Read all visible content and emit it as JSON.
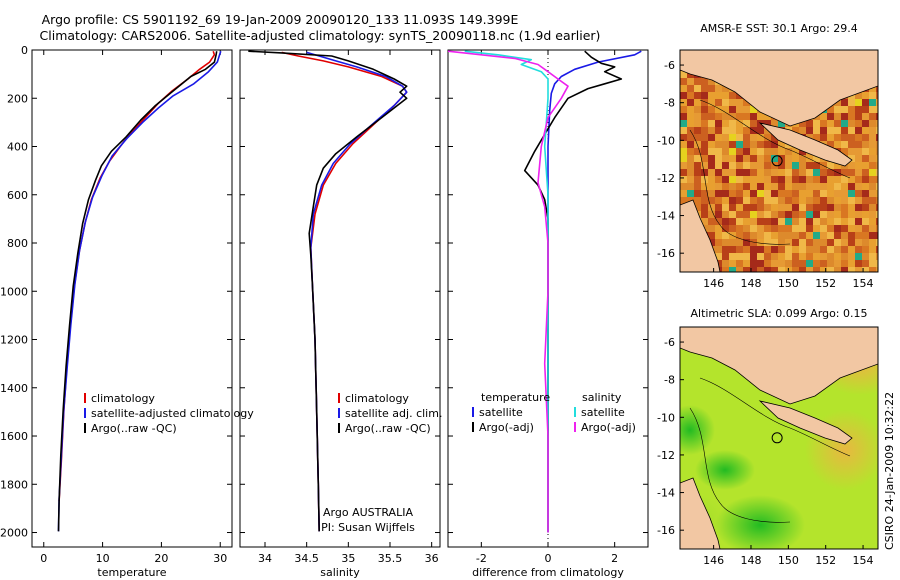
{
  "titles": {
    "line1": "Argo profile: CS 5901192_69 19-Jan-2009 20090120_133 11.093S 149.399E",
    "line2": "Climatology: CARS2006. Satellite-adjusted climatology: synTS_20090118.nc (1.9d earlier)"
  },
  "side_label": "CSIRO 24-Jan-2009 10:32:22",
  "colors": {
    "climatology": "#e00000",
    "satellite": "#1a1ae6",
    "argo": "#000000",
    "diff_satellite": "#22dddd",
    "diff_argo": "#ee22ee"
  },
  "chart_data": [
    {
      "type": "line",
      "name_panel": "temperature",
      "xlabel": "temperature",
      "ylabel": "",
      "xlim": [
        -2,
        32
      ],
      "ylim": [
        2060,
        0
      ],
      "x_ticks": [
        0,
        10,
        20,
        30
      ],
      "y_ticks": [
        0,
        200,
        400,
        600,
        800,
        1000,
        1200,
        1400,
        1600,
        1800,
        2000
      ],
      "legend": [
        "climatology",
        "satellite-adjusted climatology",
        "Argo(..raw -QC)"
      ],
      "series": [
        {
          "name": "climatology",
          "color_key": "climatology",
          "points": [
            [
              28.8,
              5
            ],
            [
              29.0,
              20
            ],
            [
              28.2,
              50
            ],
            [
              26.5,
              80
            ],
            [
              24.5,
              120
            ],
            [
              21.8,
              170
            ],
            [
              19.5,
              220
            ],
            [
              16.5,
              300
            ],
            [
              13.6,
              380
            ],
            [
              11.2,
              460
            ],
            [
              9.6,
              530
            ],
            [
              8.1,
              620
            ],
            [
              7.0,
              720
            ],
            [
              6.0,
              840
            ],
            [
              5.2,
              980
            ],
            [
              4.5,
              1150
            ],
            [
              3.9,
              1320
            ],
            [
              3.4,
              1500
            ],
            [
              3.0,
              1700
            ],
            [
              2.6,
              1870
            ]
          ]
        },
        {
          "name": "satellite-adjusted climatology",
          "color_key": "satellite",
          "points": [
            [
              30.1,
              5
            ],
            [
              29.9,
              20
            ],
            [
              29.5,
              50
            ],
            [
              28.0,
              90
            ],
            [
              25.5,
              140
            ],
            [
              22.0,
              190
            ],
            [
              19.5,
              240
            ],
            [
              16.8,
              300
            ],
            [
              14.0,
              370
            ],
            [
              11.6,
              440
            ],
            [
              9.9,
              520
            ],
            [
              8.3,
              610
            ],
            [
              7.1,
              710
            ],
            [
              6.1,
              830
            ],
            [
              5.3,
              970
            ],
            [
              4.6,
              1140
            ],
            [
              4.0,
              1310
            ],
            [
              3.4,
              1490
            ],
            [
              3.0,
              1680
            ],
            [
              2.6,
              1860
            ],
            [
              2.5,
              1995
            ]
          ]
        },
        {
          "name": "Argo(..raw -QC)",
          "color_key": "argo",
          "points": [
            [
              29.4,
              5
            ],
            [
              29.3,
              20
            ],
            [
              29.0,
              50
            ],
            [
              27.5,
              80
            ],
            [
              25.0,
              110
            ],
            [
              23.5,
              140
            ],
            [
              21.5,
              180
            ],
            [
              19.0,
              230
            ],
            [
              16.5,
              290
            ],
            [
              14.0,
              360
            ],
            [
              11.5,
              420
            ],
            [
              9.8,
              480
            ],
            [
              8.8,
              540
            ],
            [
              7.6,
              620
            ],
            [
              6.6,
              720
            ],
            [
              5.8,
              840
            ],
            [
              5.0,
              980
            ],
            [
              4.4,
              1140
            ],
            [
              3.8,
              1310
            ],
            [
              3.3,
              1490
            ],
            [
              2.9,
              1680
            ],
            [
              2.6,
              1870
            ],
            [
              2.5,
              1995
            ]
          ]
        }
      ]
    },
    {
      "type": "line",
      "name_panel": "salinity",
      "xlabel": "salinity",
      "xlim": [
        33.7,
        36.1
      ],
      "ylim": [
        2060,
        0
      ],
      "x_ticks": [
        34,
        34.5,
        35,
        35.5,
        36
      ],
      "legend": [
        "climatology",
        "satellite adj. clim.",
        "Argo(..raw -QC)"
      ],
      "annotation": [
        "Argo AUSTRALIA",
        "PI: Susan Wijffels"
      ],
      "series": [
        {
          "name": "climatology",
          "color_key": "climatology",
          "points": [
            [
              34.2,
              10
            ],
            [
              34.4,
              25
            ],
            [
              34.7,
              45
            ],
            [
              35.0,
              70
            ],
            [
              35.4,
              110
            ],
            [
              35.65,
              150
            ],
            [
              35.7,
              175
            ],
            [
              35.55,
              230
            ],
            [
              35.3,
              310
            ],
            [
              35.05,
              390
            ],
            [
              34.85,
              470
            ],
            [
              34.7,
              560
            ],
            [
              34.6,
              680
            ],
            [
              34.55,
              820
            ],
            [
              34.57,
              980
            ],
            [
              34.6,
              1200
            ],
            [
              34.62,
              1500
            ],
            [
              34.64,
              1800
            ],
            [
              34.65,
              1995
            ]
          ]
        },
        {
          "name": "satellite adj. clim.",
          "color_key": "satellite",
          "points": [
            [
              34.5,
              10
            ],
            [
              34.65,
              25
            ],
            [
              34.85,
              45
            ],
            [
              35.1,
              70
            ],
            [
              35.45,
              110
            ],
            [
              35.65,
              150
            ],
            [
              35.7,
              175
            ],
            [
              35.55,
              230
            ],
            [
              35.28,
              310
            ],
            [
              35.02,
              390
            ],
            [
              34.82,
              470
            ],
            [
              34.68,
              560
            ],
            [
              34.58,
              680
            ],
            [
              34.55,
              820
            ],
            [
              34.57,
              980
            ],
            [
              34.6,
              1200
            ],
            [
              34.62,
              1500
            ],
            [
              34.64,
              1800
            ],
            [
              34.65,
              1995
            ]
          ]
        },
        {
          "name": "Argo(..raw -QC)",
          "color_key": "argo",
          "points": [
            [
              33.8,
              5
            ],
            [
              34.2,
              12
            ],
            [
              34.8,
              25
            ],
            [
              35.0,
              45
            ],
            [
              35.3,
              80
            ],
            [
              35.55,
              120
            ],
            [
              35.7,
              150
            ],
            [
              35.62,
              175
            ],
            [
              35.7,
              200
            ],
            [
              35.4,
              280
            ],
            [
              35.1,
              360
            ],
            [
              34.85,
              430
            ],
            [
              34.7,
              490
            ],
            [
              34.62,
              560
            ],
            [
              34.58,
              650
            ],
            [
              34.53,
              760
            ],
            [
              34.55,
              850
            ],
            [
              34.57,
              980
            ],
            [
              34.6,
              1200
            ],
            [
              34.62,
              1500
            ],
            [
              34.64,
              1800
            ],
            [
              34.65,
              1995
            ]
          ]
        }
      ]
    },
    {
      "type": "line",
      "name_panel": "difference",
      "xlabel": "difference from climatology",
      "xlim": [
        -3,
        3
      ],
      "ylim": [
        2060,
        0
      ],
      "x_ticks": [
        -2,
        0,
        2
      ],
      "legend_left": {
        "title": "temperature",
        "items": [
          "satellite",
          "Argo(-adj)"
        ]
      },
      "legend_right": {
        "title": "salinity",
        "items": [
          "satellite",
          "Argo(-adj)"
        ]
      },
      "series": [
        {
          "name": "temperature satellite",
          "color_key": "satellite",
          "points": [
            [
              2.8,
              5
            ],
            [
              2.6,
              20
            ],
            [
              1.5,
              50
            ],
            [
              0.8,
              80
            ],
            [
              0.4,
              110
            ],
            [
              0.2,
              140
            ],
            [
              0.1,
              180
            ],
            [
              0.05,
              250
            ],
            [
              0.0,
              400
            ],
            [
              0.0,
              1000
            ],
            [
              0.0,
              2000
            ]
          ]
        },
        {
          "name": "temperature Argo(-adj)",
          "color_key": "argo",
          "points": [
            [
              1.1,
              5
            ],
            [
              1.3,
              30
            ],
            [
              1.6,
              55
            ],
            [
              2.0,
              70
            ],
            [
              1.7,
              90
            ],
            [
              2.2,
              120
            ],
            [
              1.7,
              140
            ],
            [
              1.2,
              160
            ],
            [
              0.6,
              200
            ],
            [
              0.2,
              280
            ],
            [
              -0.1,
              350
            ],
            [
              -0.4,
              420
            ],
            [
              -0.7,
              500
            ],
            [
              -0.3,
              560
            ],
            [
              -0.1,
              620
            ],
            [
              0.0,
              700
            ],
            [
              0.0,
              1000
            ],
            [
              0.0,
              2000
            ]
          ]
        },
        {
          "name": "salinity satellite",
          "color_key": "diff_satellite",
          "points": [
            [
              -2.5,
              5
            ],
            [
              -1.5,
              20
            ],
            [
              -0.5,
              40
            ],
            [
              -0.8,
              60
            ],
            [
              -0.2,
              90
            ],
            [
              0.0,
              120
            ],
            [
              0.0,
              200
            ],
            [
              -0.1,
              400
            ],
            [
              0.0,
              600
            ],
            [
              0.0,
              1000
            ],
            [
              0.0,
              2000
            ]
          ]
        },
        {
          "name": "salinity Argo(-adj)",
          "color_key": "diff_argo",
          "points": [
            [
              -3.0,
              5
            ],
            [
              -2.0,
              20
            ],
            [
              -1.0,
              35
            ],
            [
              -0.3,
              60
            ],
            [
              0.0,
              90
            ],
            [
              0.3,
              120
            ],
            [
              0.6,
              150
            ],
            [
              0.4,
              200
            ],
            [
              0.0,
              280
            ],
            [
              -0.2,
              400
            ],
            [
              -0.3,
              550
            ],
            [
              -0.1,
              650
            ],
            [
              0.0,
              800
            ],
            [
              0.0,
              1000
            ],
            [
              -0.1,
              1300
            ],
            [
              0.0,
              1600
            ],
            [
              0.0,
              2000
            ]
          ]
        }
      ]
    },
    {
      "type": "heatmap",
      "title": "AMSR-E SST: 30.1 Argo: 29.4",
      "xlim": [
        144.2,
        154.8
      ],
      "ylim": [
        -17,
        -5.2
      ],
      "x_ticks": [
        146,
        148,
        150,
        152,
        154
      ],
      "y_ticks": [
        -6,
        -8,
        -10,
        -12,
        -14,
        -16
      ],
      "marker": [
        149.4,
        -11.09
      ]
    },
    {
      "type": "heatmap",
      "title": "Altimetric SLA: 0.099 Argo: 0.15",
      "xlim": [
        144.2,
        154.8
      ],
      "ylim": [
        -17,
        -5.2
      ],
      "x_ticks": [
        146,
        148,
        150,
        152,
        154
      ],
      "y_ticks": [
        -6,
        -8,
        -10,
        -12,
        -14,
        -16
      ],
      "marker": [
        149.4,
        -11.09
      ]
    }
  ]
}
